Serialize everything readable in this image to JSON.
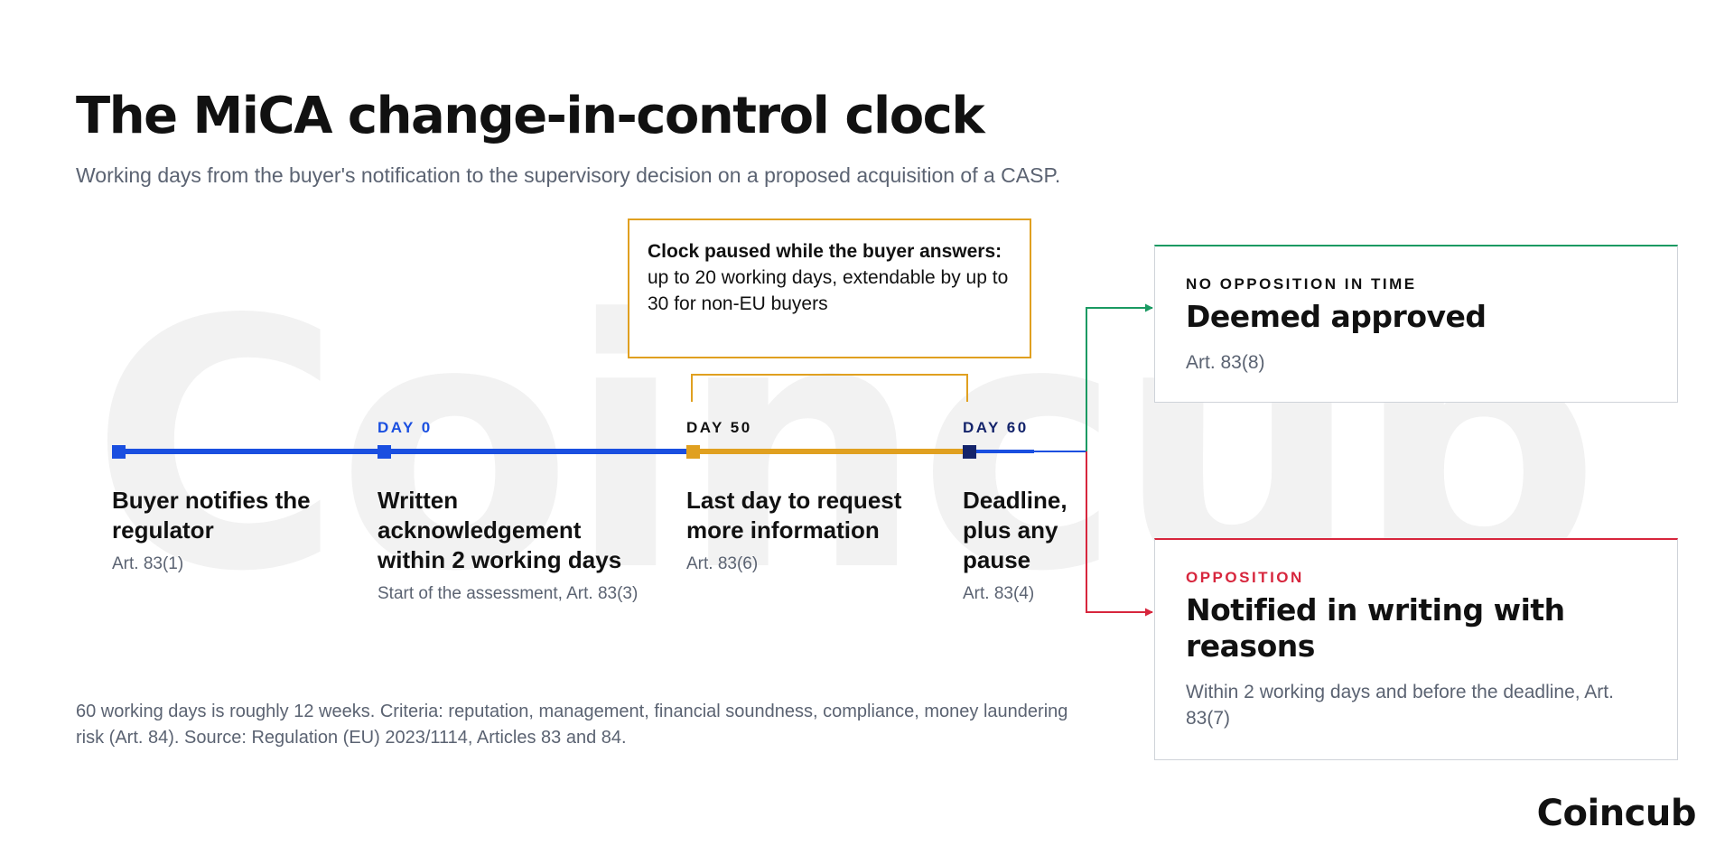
{
  "watermark": "Coincub",
  "header": {
    "title": "The MiCA change-in-control clock",
    "subtitle": "Working days from the buyer's notification to the supervisory decision on a proposed acquisition of a CASP."
  },
  "pause_box": {
    "bold": "Clock paused while the buyer answers:",
    "text": " up to 20 working days, extendable by up to 30 for non-EU buyers"
  },
  "timeline": {
    "day_labels": [
      "DAY 0",
      "DAY 50",
      "DAY 60"
    ],
    "steps": [
      {
        "title": "Buyer notifies the regulator",
        "note": "Art. 83(1)"
      },
      {
        "title": "Written acknowledgement within 2 working days",
        "note": "Start of the assessment, Art. 83(3)"
      },
      {
        "title": "Last day to request more information",
        "note": "Art. 83(6)"
      },
      {
        "title": "Deadline, plus any pause",
        "note": "Art. 83(4)"
      }
    ]
  },
  "outcomes": {
    "approved": {
      "eyebrow": "NO OPPOSITION IN TIME",
      "title": "Deemed approved",
      "note": "Art. 83(8)"
    },
    "opposition": {
      "eyebrow": "OPPOSITION",
      "title": "Notified in writing with reasons",
      "note": "Within 2 working days and before the deadline, Art. 83(7)"
    }
  },
  "footnote": "60 working days is roughly 12 weeks. Criteria: reputation, management, financial soundness, compliance, money laundering risk (Art. 84). Source: Regulation (EU) 2023/1114, Articles 83 and 84.",
  "brand": "Coincub",
  "colors": {
    "blue": "#1a4fe0",
    "amber": "#e0a020",
    "navy": "#14246b",
    "green": "#1a9a62",
    "red": "#d7263d",
    "grey_text": "#5b6372"
  }
}
